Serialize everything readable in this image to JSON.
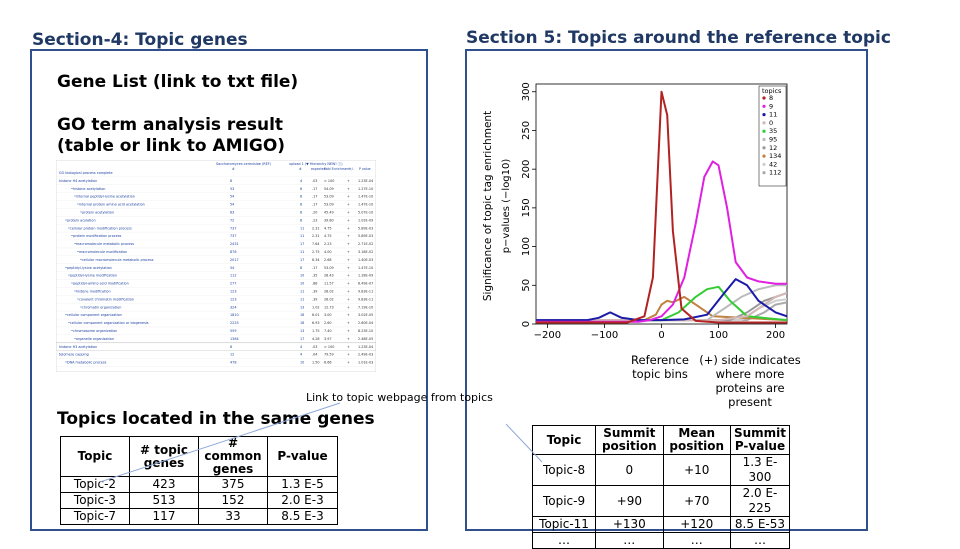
{
  "section4": {
    "title": "Section-4: Topic genes",
    "gene_list": "Gene List (link to txt file)",
    "go_line1": "GO term analysis result",
    "go_line2": "(table or link to AMIGO)",
    "go_header": [
      "Saccharomyces cerevisiae (REF)",
      "upload 1 (▼ Hierarchy NEW! ⓘ)"
    ],
    "go_subheader": [
      "#",
      "#",
      "expected",
      "Fold Enrichment",
      "+/-",
      "P value"
    ],
    "go_rows": [
      [
        "GO biological process complete",
        "",
        "",
        "",
        "",
        "",
        ""
      ],
      [
        "histone H4 acetylation",
        "8",
        "4",
        ".03",
        "> 100",
        "+",
        "1.23E-04"
      ],
      [
        "•histone acetylation",
        "53",
        "8",
        ".17",
        "54.09",
        "+",
        "1.27E-10"
      ],
      [
        "•internal peptidyl-lysine acetylation",
        "54",
        "8",
        ".17",
        "53.09",
        "+",
        "1.47E-10"
      ],
      [
        "•internal protein amino acid acetylation",
        "54",
        "8",
        ".17",
        "53.09",
        "+",
        "1.47E-10"
      ],
      [
        "•protein acetylation",
        "63",
        "8",
        ".20",
        "45.49",
        "+",
        "5.07E-10"
      ],
      [
        "•protein acylation",
        "72",
        "8",
        ".23",
        "39.80",
        "+",
        "1.02E-09"
      ],
      [
        "•cellular protein modification process",
        "737",
        "11",
        "2.31",
        "4.75",
        "+",
        "5.89E-03"
      ],
      [
        "•protein modification process",
        "737",
        "11",
        "2.31",
        "4.75",
        "+",
        "5.89E-03"
      ],
      [
        "•macromolecule metabolic process",
        "2431",
        "17",
        "7.64",
        "2.23",
        "+",
        "2.71E-02"
      ],
      [
        "•macromolecule modification",
        "876",
        "11",
        "2.75",
        "4.00",
        "+",
        "3.18E-02"
      ],
      [
        "•cellular macromolecule metabolic process",
        "2017",
        "17",
        "6.34",
        "2.68",
        "+",
        "1.40E-03"
      ],
      [
        "•peptidyl-lysine acetylation",
        "54",
        "8",
        ".17",
        "53.09",
        "+",
        "1.47E-10"
      ],
      [
        "•peptidyl-lysine modification",
        "112",
        "10",
        ".35",
        "28.43",
        "+",
        "1.28E-09"
      ],
      [
        "•peptidyl-amino acid modification",
        "277",
        "10",
        ".88",
        "11.57",
        "+",
        "6.49E-07"
      ],
      [
        "•histone modification",
        "123",
        "11",
        ".39",
        "28.02",
        "+",
        "9.83E-11"
      ],
      [
        "•covalent chromatin modification",
        "123",
        "11",
        ".39",
        "28.02",
        "+",
        "9.83E-11"
      ],
      [
        "•chromatin organization",
        "324",
        "13",
        "1.02",
        "12.73",
        "+",
        "7.19E-10"
      ],
      [
        "•cellular component organization",
        "1810",
        "18",
        "6.01",
        "3.00",
        "+",
        "3.02E-05"
      ],
      [
        "•cellular component organization or biogenesis",
        "2225",
        "18",
        "6.93",
        "2.60",
        "+",
        "2.60E-04"
      ],
      [
        "•chromosome organization",
        "559",
        "13",
        "1.75",
        "7.40",
        "+",
        "8.23E-10"
      ],
      [
        "•organelle organization",
        "1364",
        "17",
        "4.28",
        "3.97",
        "+",
        "2.48E-05"
      ],
      [
        "histone H3 acetylation",
        "8",
        "4",
        ".03",
        "> 100",
        "+",
        "1.23E-04"
      ],
      [
        "telomere capping",
        "12",
        "4",
        ".04",
        "79.59",
        "+",
        "2.49E-03"
      ],
      [
        "•DNA metabolic process",
        "478",
        "10",
        "1.50",
        "6.66",
        "+",
        "1.01E-03"
      ]
    ],
    "topics_heading": "Topics located in the same genes",
    "table_headers": [
      "Topic",
      "# topic genes",
      "# common genes",
      "P-value"
    ],
    "table_rows": [
      [
        "Topic-2",
        "423",
        "375",
        "1.3 E-5"
      ],
      [
        "Topic-3",
        "513",
        "152",
        "2.0 E-3"
      ],
      [
        "Topic-7",
        "117",
        "33",
        "8.5 E-3"
      ]
    ],
    "link_note": "Link to topic webpage from topics"
  },
  "section5": {
    "title": "Section 5: Topics around the reference topic",
    "annotation_left": "Reference topic bins",
    "annotation_right": "(+) side indicates where more proteins are present",
    "table_headers": [
      "Topic",
      "Summit position",
      "Mean position",
      "Summit P-value"
    ],
    "table_rows": [
      [
        "Topic-8",
        "0",
        "+10",
        "1.3 E-300"
      ],
      [
        "Topic-9",
        "+90",
        "+70",
        "2.0 E-225"
      ],
      [
        "Topic-11",
        "+130",
        "+120",
        "8.5 E-53"
      ],
      [
        "…",
        "…",
        "…",
        "…"
      ]
    ]
  },
  "chart_data": {
    "type": "line",
    "xlim": [
      -220,
      220
    ],
    "ylim": [
      0,
      310
    ],
    "xticks": [
      -200,
      -100,
      0,
      100,
      200
    ],
    "yticks": [
      0,
      50,
      100,
      150,
      200,
      250,
      300
    ],
    "ylabel_outer": "Significance of topic tag enrichment",
    "ylabel": "p−values (−log10)",
    "legend_title": "topics",
    "legend_position": "top-right",
    "series": [
      {
        "name": "8",
        "color": "#b22222",
        "x": [
          -220,
          -60,
          -30,
          -15,
          -5,
          0,
          10,
          20,
          35,
          60,
          100,
          220
        ],
        "y": [
          2,
          2,
          10,
          60,
          220,
          300,
          270,
          120,
          20,
          4,
          2,
          2
        ]
      },
      {
        "name": "9",
        "color": "#e020e0",
        "x": [
          -220,
          -40,
          -20,
          0,
          20,
          40,
          60,
          75,
          90,
          100,
          115,
          130,
          150,
          170,
          200,
          220
        ],
        "y": [
          3,
          3,
          5,
          10,
          25,
          60,
          130,
          190,
          210,
          205,
          150,
          80,
          60,
          55,
          52,
          52
        ]
      },
      {
        "name": "11",
        "color": "#1a1aa8",
        "x": [
          -220,
          -130,
          -110,
          -90,
          -70,
          -40,
          0,
          40,
          80,
          110,
          130,
          150,
          170,
          200,
          220
        ],
        "y": [
          5,
          5,
          8,
          15,
          8,
          5,
          5,
          6,
          12,
          40,
          58,
          50,
          30,
          15,
          10
        ]
      },
      {
        "name": "0",
        "color": "#d4b7b7",
        "x": [
          -220,
          100,
          150,
          180,
          200,
          220
        ],
        "y": [
          5,
          5,
          10,
          25,
          35,
          40
        ]
      },
      {
        "name": "35",
        "color": "#33cc33",
        "x": [
          -220,
          0,
          30,
          60,
          80,
          100,
          120,
          150,
          220
        ],
        "y": [
          3,
          5,
          15,
          35,
          45,
          48,
          30,
          10,
          5
        ]
      },
      {
        "name": "95",
        "color": "#bbbbbb",
        "x": [
          -220,
          80,
          110,
          140,
          170,
          200,
          220
        ],
        "y": [
          5,
          5,
          20,
          35,
          45,
          50,
          50
        ]
      },
      {
        "name": "12",
        "color": "#999999",
        "x": [
          -220,
          120,
          150,
          180,
          200,
          220
        ],
        "y": [
          5,
          5,
          15,
          30,
          35,
          40
        ]
      },
      {
        "name": "134",
        "color": "#c08040",
        "x": [
          -220,
          -30,
          -10,
          0,
          10,
          20,
          40,
          60,
          90,
          220
        ],
        "y": [
          5,
          5,
          12,
          25,
          30,
          28,
          35,
          25,
          10,
          5
        ]
      },
      {
        "name": "42",
        "color": "#cfcfcf",
        "x": [
          -220,
          140,
          170,
          200,
          220
        ],
        "y": [
          5,
          5,
          20,
          30,
          32
        ]
      },
      {
        "name": "112",
        "color": "#aaaaaa",
        "x": [
          -220,
          150,
          180,
          200,
          220
        ],
        "y": [
          5,
          5,
          15,
          25,
          28
        ]
      }
    ]
  }
}
